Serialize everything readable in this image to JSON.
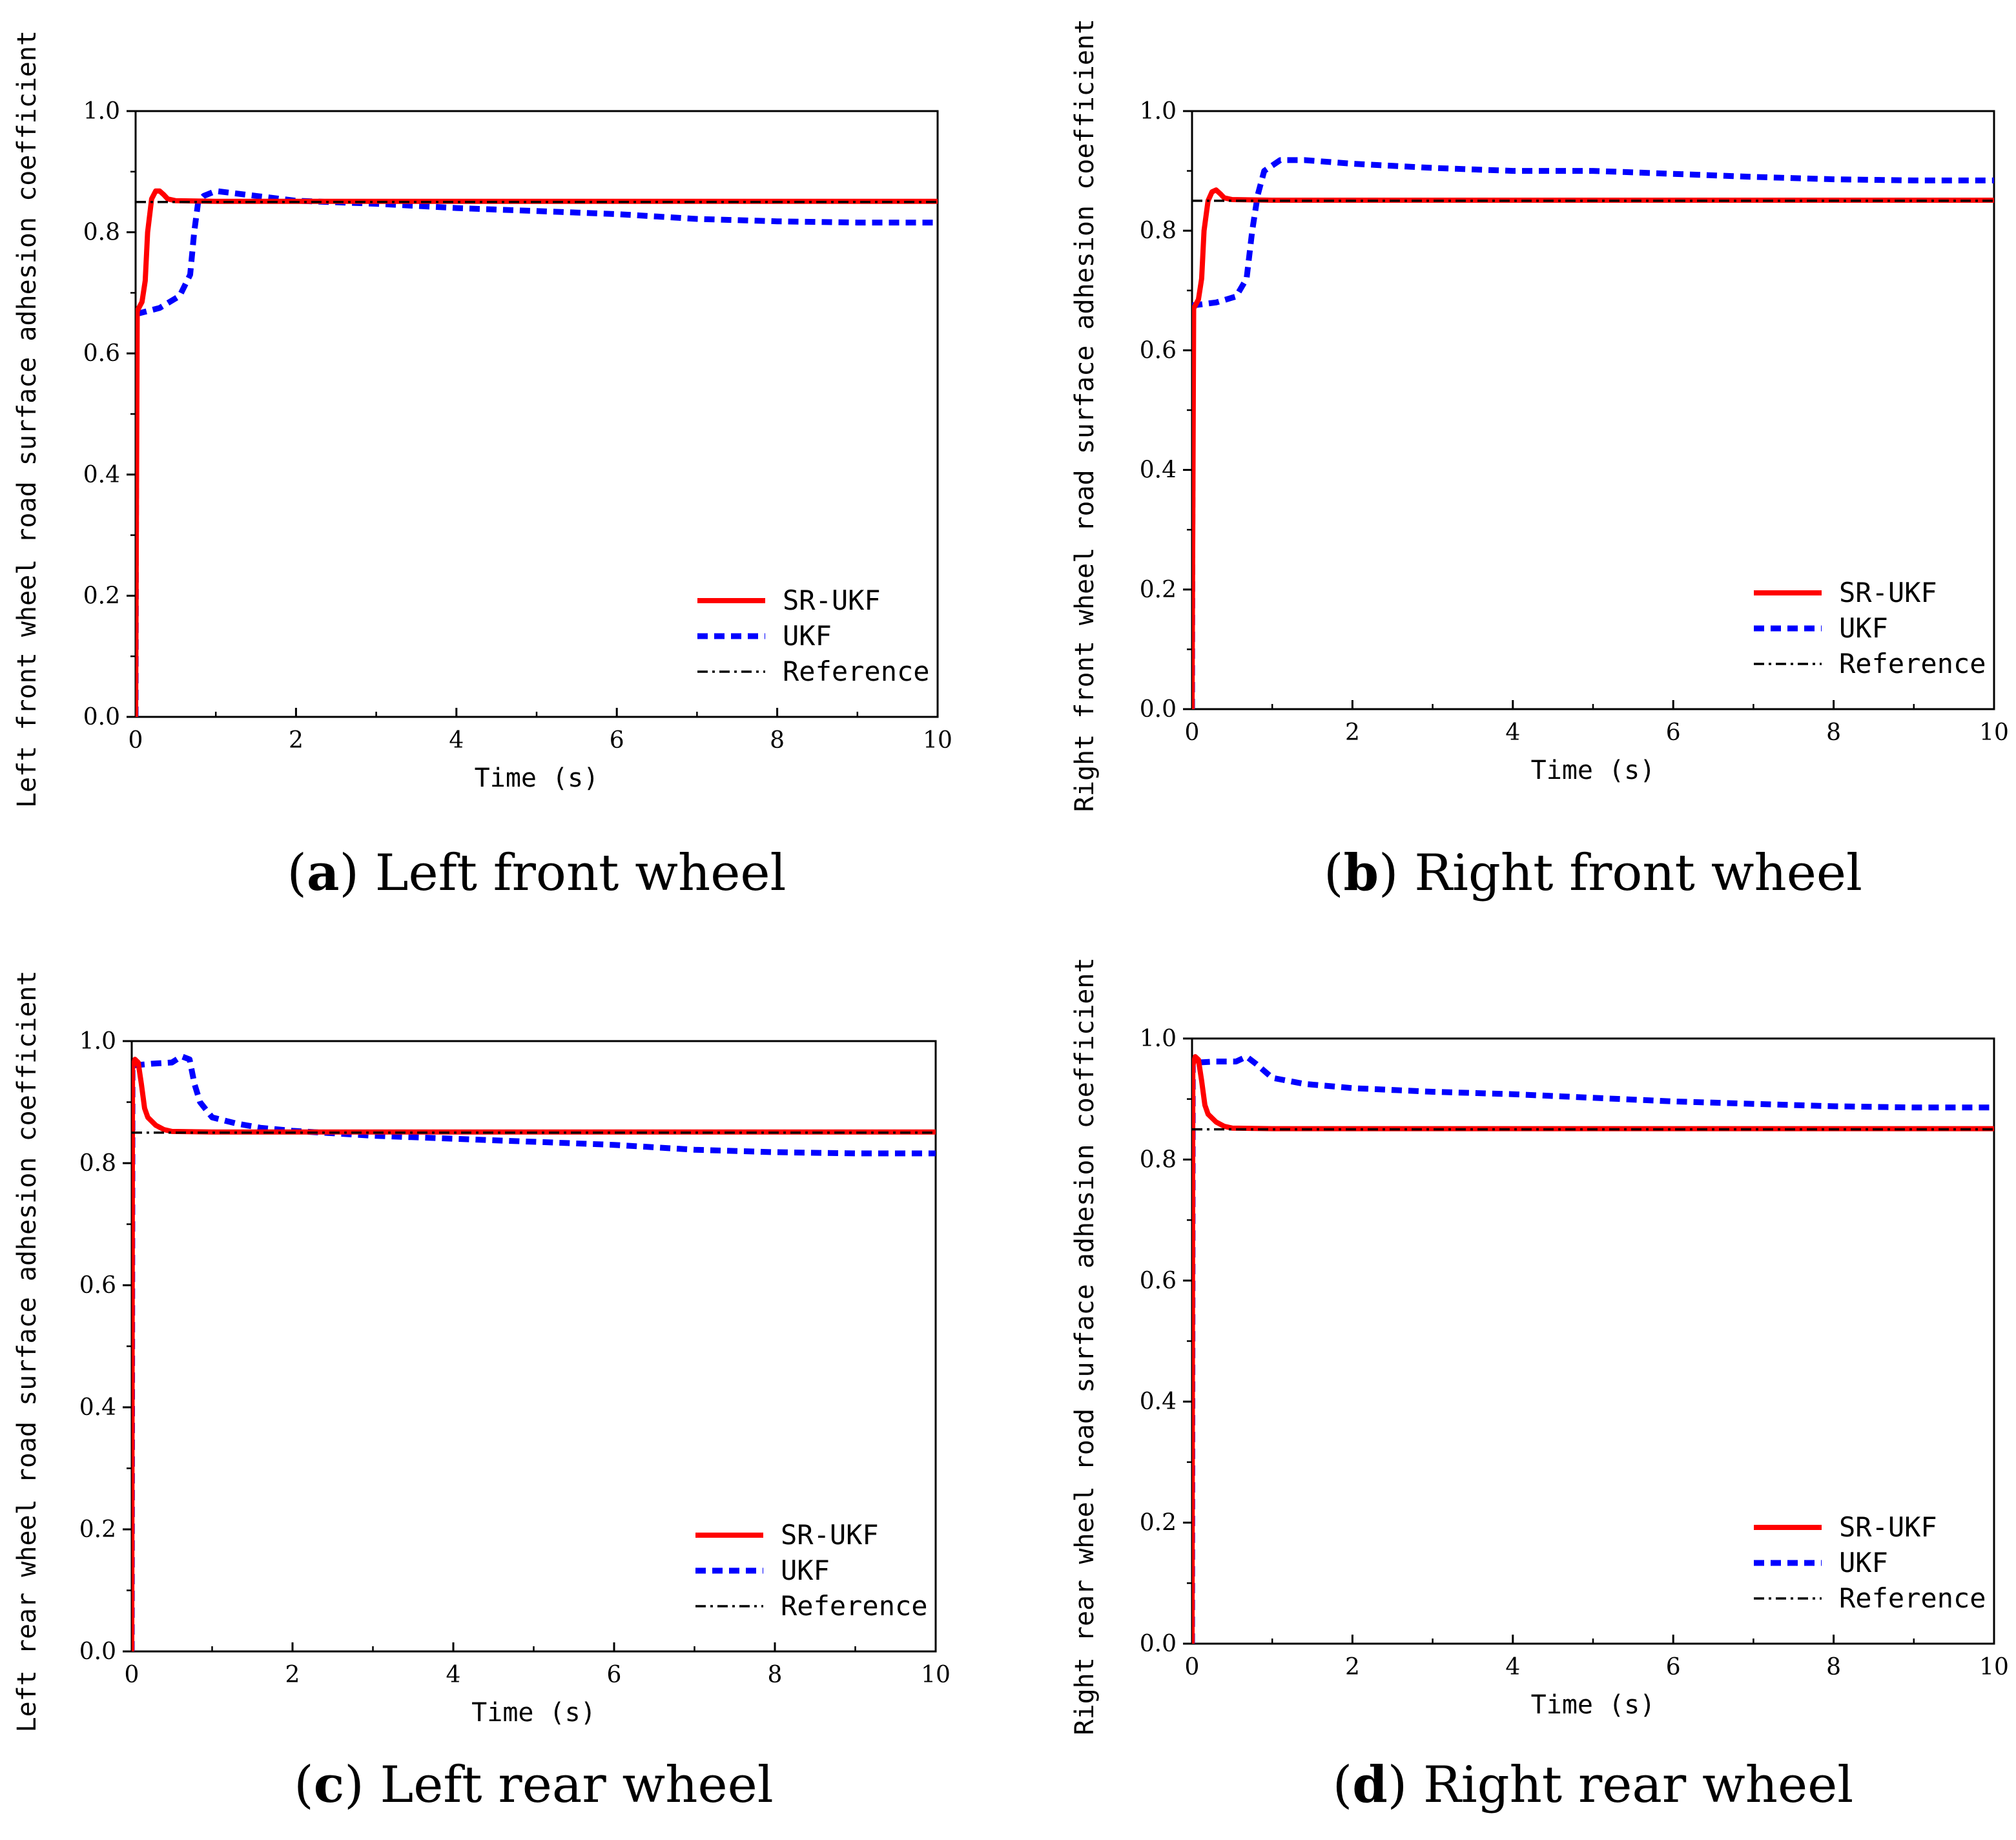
{
  "colors": {
    "sr_ukf": "#ff0000",
    "ukf": "#0000ff",
    "reference": "#000000"
  },
  "chart_data": [
    {
      "type": "line",
      "caption_letter": "a",
      "caption_text": "Left front wheel",
      "xlabel": "Time (s)",
      "ylabel": "Left front wheel road surface adhesion coefficient",
      "xlim": [
        0,
        10
      ],
      "ylim": [
        0,
        1.0
      ],
      "xticks": [
        "0",
        "2",
        "4",
        "6",
        "8",
        "10"
      ],
      "yticks": [
        "0.0",
        "0.2",
        "0.4",
        "0.6",
        "0.8",
        "1.0"
      ],
      "legend_position": "bottom-right",
      "series": [
        {
          "name": "SR-UKF",
          "style": "solid",
          "points": [
            [
              0,
              0
            ],
            [
              0.02,
              0.67
            ],
            [
              0.08,
              0.685
            ],
            [
              0.12,
              0.72
            ],
            [
              0.15,
              0.8
            ],
            [
              0.2,
              0.855
            ],
            [
              0.25,
              0.868
            ],
            [
              0.3,
              0.868
            ],
            [
              0.35,
              0.862
            ],
            [
              0.4,
              0.855
            ],
            [
              0.5,
              0.852
            ],
            [
              1,
              0.851
            ],
            [
              10,
              0.851
            ]
          ]
        },
        {
          "name": "UKF",
          "style": "dashed",
          "points": [
            [
              0,
              0
            ],
            [
              0.01,
              0.665
            ],
            [
              0.3,
              0.675
            ],
            [
              0.55,
              0.695
            ],
            [
              0.68,
              0.73
            ],
            [
              0.73,
              0.8
            ],
            [
              0.78,
              0.85
            ],
            [
              0.85,
              0.86
            ],
            [
              1,
              0.868
            ],
            [
              1.5,
              0.86
            ],
            [
              2,
              0.852
            ],
            [
              3,
              0.847
            ],
            [
              4,
              0.84
            ],
            [
              5,
              0.835
            ],
            [
              6,
              0.83
            ],
            [
              7,
              0.822
            ],
            [
              8,
              0.818
            ],
            [
              9,
              0.816
            ],
            [
              10,
              0.816
            ]
          ]
        },
        {
          "name": "Reference",
          "style": "dashdot",
          "points": [
            [
              0,
              0.85
            ],
            [
              10,
              0.85
            ]
          ]
        }
      ]
    },
    {
      "type": "line",
      "caption_letter": "b",
      "caption_text": "Right front wheel",
      "xlabel": "Time (s)",
      "ylabel": "Right front wheel road surface adhesion coefficient",
      "xlim": [
        0,
        10
      ],
      "ylim": [
        0,
        1.0
      ],
      "xticks": [
        "0",
        "2",
        "4",
        "6",
        "8",
        "10"
      ],
      "yticks": [
        "0.0",
        "0.2",
        "0.4",
        "0.6",
        "0.8",
        "1.0"
      ],
      "legend_position": "bottom-right",
      "series": [
        {
          "name": "SR-UKF",
          "style": "solid",
          "points": [
            [
              0,
              0
            ],
            [
              0.02,
              0.67
            ],
            [
              0.08,
              0.685
            ],
            [
              0.12,
              0.72
            ],
            [
              0.15,
              0.8
            ],
            [
              0.2,
              0.85
            ],
            [
              0.25,
              0.865
            ],
            [
              0.3,
              0.868
            ],
            [
              0.35,
              0.862
            ],
            [
              0.4,
              0.855
            ],
            [
              0.5,
              0.852
            ],
            [
              1,
              0.851
            ],
            [
              10,
              0.851
            ]
          ]
        },
        {
          "name": "UKF",
          "style": "dashed",
          "points": [
            [
              0,
              0
            ],
            [
              0.01,
              0.675
            ],
            [
              0.3,
              0.68
            ],
            [
              0.55,
              0.69
            ],
            [
              0.68,
              0.72
            ],
            [
              0.75,
              0.8
            ],
            [
              0.82,
              0.86
            ],
            [
              0.9,
              0.9
            ],
            [
              1.1,
              0.918
            ],
            [
              1.4,
              0.918
            ],
            [
              2,
              0.912
            ],
            [
              3,
              0.905
            ],
            [
              4,
              0.9
            ],
            [
              5,
              0.9
            ],
            [
              6,
              0.895
            ],
            [
              7,
              0.89
            ],
            [
              8,
              0.886
            ],
            [
              9,
              0.884
            ],
            [
              10,
              0.884
            ]
          ]
        },
        {
          "name": "Reference",
          "style": "dashdot",
          "points": [
            [
              0,
              0.85
            ],
            [
              10,
              0.85
            ]
          ]
        }
      ]
    },
    {
      "type": "line",
      "caption_letter": "c",
      "caption_text": "Left rear wheel",
      "xlabel": "Time (s)",
      "ylabel": "Left rear wheel road surface adhesion coefficient",
      "xlim": [
        0,
        10
      ],
      "ylim": [
        0,
        1.0
      ],
      "xticks": [
        "0",
        "2",
        "4",
        "6",
        "8",
        "10"
      ],
      "yticks": [
        "0.0",
        "0.2",
        "0.4",
        "0.6",
        "0.8",
        "1.0"
      ],
      "legend_position": "bottom-right",
      "series": [
        {
          "name": "SR-UKF",
          "style": "solid",
          "points": [
            [
              0,
              0
            ],
            [
              0.01,
              0.955
            ],
            [
              0.04,
              0.97
            ],
            [
              0.08,
              0.965
            ],
            [
              0.12,
              0.93
            ],
            [
              0.16,
              0.89
            ],
            [
              0.2,
              0.875
            ],
            [
              0.3,
              0.862
            ],
            [
              0.4,
              0.855
            ],
            [
              0.5,
              0.852
            ],
            [
              1,
              0.851
            ],
            [
              10,
              0.851
            ]
          ]
        },
        {
          "name": "UKF",
          "style": "dashed",
          "points": [
            [
              0,
              0
            ],
            [
              0.01,
              0.96
            ],
            [
              0.25,
              0.963
            ],
            [
              0.5,
              0.965
            ],
            [
              0.62,
              0.975
            ],
            [
              0.72,
              0.97
            ],
            [
              0.78,
              0.93
            ],
            [
              0.85,
              0.9
            ],
            [
              1,
              0.875
            ],
            [
              1.3,
              0.865
            ],
            [
              1.6,
              0.858
            ],
            [
              2,
              0.853
            ],
            [
              3,
              0.845
            ],
            [
              4,
              0.84
            ],
            [
              5,
              0.835
            ],
            [
              6,
              0.83
            ],
            [
              7,
              0.822
            ],
            [
              8,
              0.818
            ],
            [
              9,
              0.816
            ],
            [
              10,
              0.816
            ]
          ]
        },
        {
          "name": "Reference",
          "style": "dashdot",
          "points": [
            [
              0,
              0.85
            ],
            [
              10,
              0.85
            ]
          ]
        }
      ]
    },
    {
      "type": "line",
      "caption_letter": "d",
      "caption_text": "Right rear wheel",
      "xlabel": "Time (s)",
      "ylabel": "Right rear wheel road surface adhesion coefficient",
      "xlim": [
        0,
        10
      ],
      "ylim": [
        0,
        1.0
      ],
      "xticks": [
        "0",
        "2",
        "4",
        "6",
        "8",
        "10"
      ],
      "yticks": [
        "0.0",
        "0.2",
        "0.4",
        "0.6",
        "0.8",
        "1.0"
      ],
      "legend_position": "bottom-right",
      "series": [
        {
          "name": "SR-UKF",
          "style": "solid",
          "points": [
            [
              0,
              0
            ],
            [
              0.01,
              0.955
            ],
            [
              0.04,
              0.97
            ],
            [
              0.08,
              0.965
            ],
            [
              0.12,
              0.93
            ],
            [
              0.16,
              0.89
            ],
            [
              0.2,
              0.875
            ],
            [
              0.3,
              0.862
            ],
            [
              0.4,
              0.855
            ],
            [
              0.5,
              0.852
            ],
            [
              1,
              0.851
            ],
            [
              10,
              0.851
            ]
          ]
        },
        {
          "name": "UKF",
          "style": "dashed",
          "points": [
            [
              0,
              0
            ],
            [
              0.01,
              0.96
            ],
            [
              0.3,
              0.962
            ],
            [
              0.55,
              0.962
            ],
            [
              0.68,
              0.97
            ],
            [
              0.8,
              0.958
            ],
            [
              1,
              0.935
            ],
            [
              1.4,
              0.925
            ],
            [
              2,
              0.918
            ],
            [
              3,
              0.912
            ],
            [
              4,
              0.908
            ],
            [
              5,
              0.902
            ],
            [
              6,
              0.896
            ],
            [
              7,
              0.892
            ],
            [
              8,
              0.888
            ],
            [
              9,
              0.886
            ],
            [
              10,
              0.886
            ]
          ]
        },
        {
          "name": "Reference",
          "style": "dashdot",
          "points": [
            [
              0,
              0.85
            ],
            [
              10,
              0.85
            ]
          ]
        }
      ]
    }
  ]
}
